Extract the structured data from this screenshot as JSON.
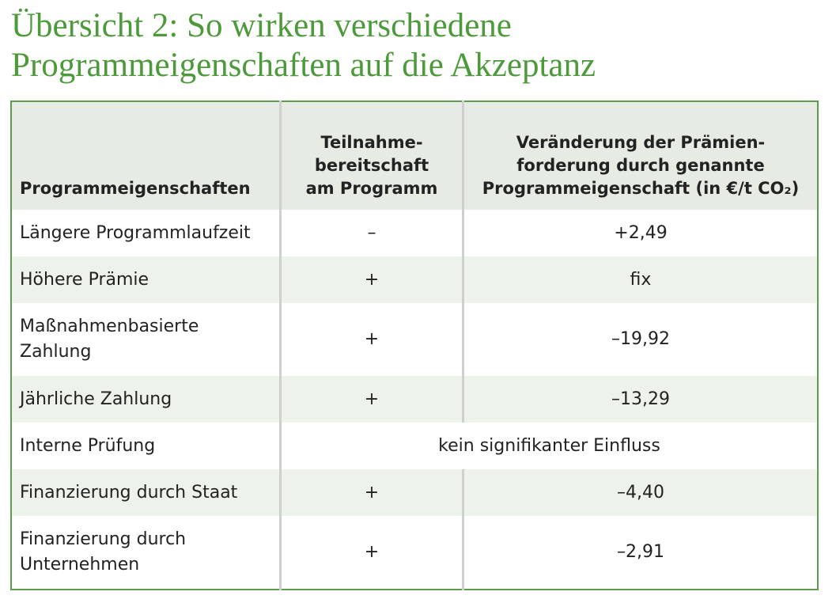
{
  "title": "Übersicht 2: So wirken verschiedene Programmeigenschaften auf die Akzeptanz",
  "table": {
    "header": [
      "Programmeigenschaften",
      "Teilnahme-\nbereitschaft\nam Programm",
      "Veränderung der Prämien-\nforderung durch genannte\nProgrammeigenschaft (in €/t CO₂)"
    ],
    "rows": [
      [
        "Längere Programmlaufzeit",
        "–",
        "+2,49"
      ],
      [
        "Höhere Prämie",
        "+",
        "fix"
      ],
      [
        "Maßnahmenbasierte\nZahlung",
        "+",
        "–19,92"
      ],
      [
        "Jährliche Zahlung",
        "+",
        "–13,29"
      ],
      [
        "Interne Prüfung",
        "kein signifikanter Einfluss"
      ],
      [
        "Finanzierung durch Staat",
        "+",
        "–4,40"
      ],
      [
        "Finanzierung durch\nUnternehmen",
        "+",
        "–2,91"
      ]
    ]
  }
}
